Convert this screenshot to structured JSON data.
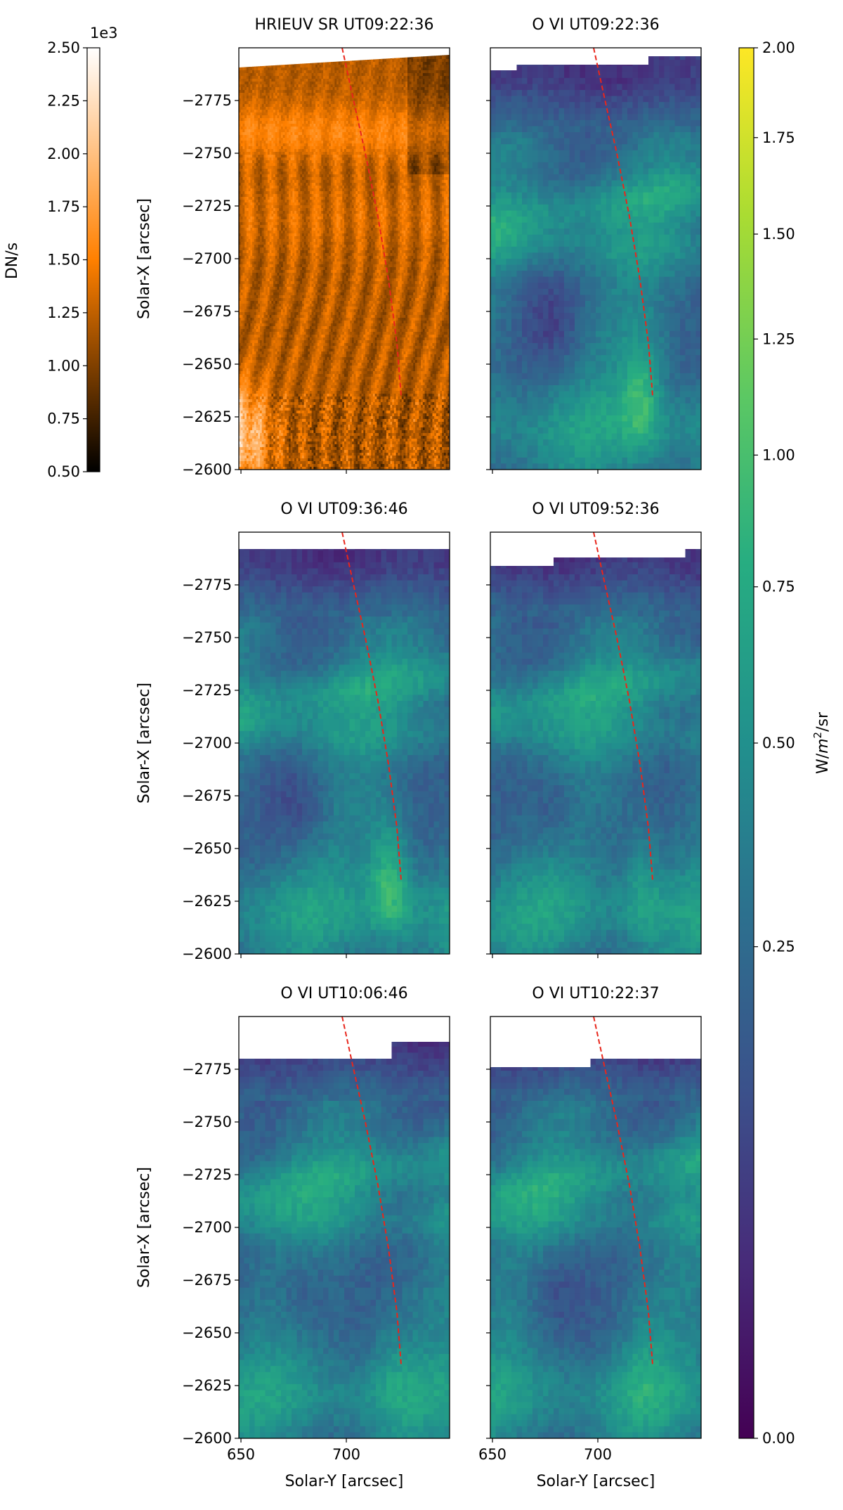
{
  "chart_data": {
    "type": "heatmap",
    "panels": [
      {
        "title": "HRIEUV SR UT09:22:36",
        "colormap": "afmhot",
        "ylabel": "Solar-X [arcsec]",
        "xlabel": "",
        "show_xticklabels": false
      },
      {
        "title": "O VI UT09:22:36",
        "colormap": "viridis",
        "ylabel": "",
        "xlabel": "",
        "show_xticklabels": false
      },
      {
        "title": "O VI UT09:36:46",
        "colormap": "viridis",
        "ylabel": "Solar-X [arcsec]",
        "xlabel": "",
        "show_xticklabels": false
      },
      {
        "title": "O VI UT09:52:36",
        "colormap": "viridis",
        "ylabel": "",
        "xlabel": "",
        "show_xticklabels": false
      },
      {
        "title": "O VI UT10:06:46",
        "colormap": "viridis",
        "ylabel": "Solar-X [arcsec]",
        "xlabel": "Solar-Y [arcsec]",
        "show_xticklabels": true
      },
      {
        "title": "O VI UT10:22:37",
        "colormap": "viridis",
        "ylabel": "",
        "xlabel": "Solar-Y [arcsec]",
        "show_xticklabels": true
      }
    ],
    "x_ticks": [
      650,
      700
    ],
    "xlim": [
      649,
      749
    ],
    "y_ticks": [
      -2775,
      -2750,
      -2725,
      -2700,
      -2675,
      -2650,
      -2625,
      -2600
    ],
    "y_tick_labels": [
      "−2775",
      "−2750",
      "−2725",
      "−2700",
      "−2675",
      "−2650",
      "−2625",
      "−2600"
    ],
    "ylim": [
      -2800,
      -2600
    ],
    "overlay_curve": {
      "style": "dashed",
      "color": "#e8261c",
      "points": [
        [
          698,
          -2800
        ],
        [
          703,
          -2777
        ],
        [
          709,
          -2750
        ],
        [
          715,
          -2720
        ],
        [
          720,
          -2690
        ],
        [
          724,
          -2660
        ],
        [
          726,
          -2635
        ]
      ]
    },
    "colorbar_left": {
      "label": "DN/s",
      "multiplier": "1e3",
      "ticks": [
        0.5,
        0.75,
        1.0,
        1.25,
        1.5,
        1.75,
        2.0,
        2.25,
        2.5
      ],
      "tick_labels": [
        "0.50",
        "0.75",
        "1.00",
        "1.25",
        "1.50",
        "1.75",
        "2.00",
        "2.25",
        "2.50"
      ],
      "range": [
        0.5,
        2.5
      ]
    },
    "colorbar_right": {
      "label_main": "W/",
      "label_italic": "m",
      "label_sup": "2",
      "label_end": "/sr",
      "ticks": [
        0.0,
        0.25,
        0.5,
        0.75,
        1.0,
        1.25,
        1.5,
        1.75,
        2.0
      ],
      "tick_labels": [
        "0.00",
        "0.25",
        "0.50",
        "0.75",
        "1.00",
        "1.25",
        "1.50",
        "1.75",
        "2.00"
      ],
      "scale": "sqrt",
      "range": [
        0,
        2
      ]
    }
  }
}
